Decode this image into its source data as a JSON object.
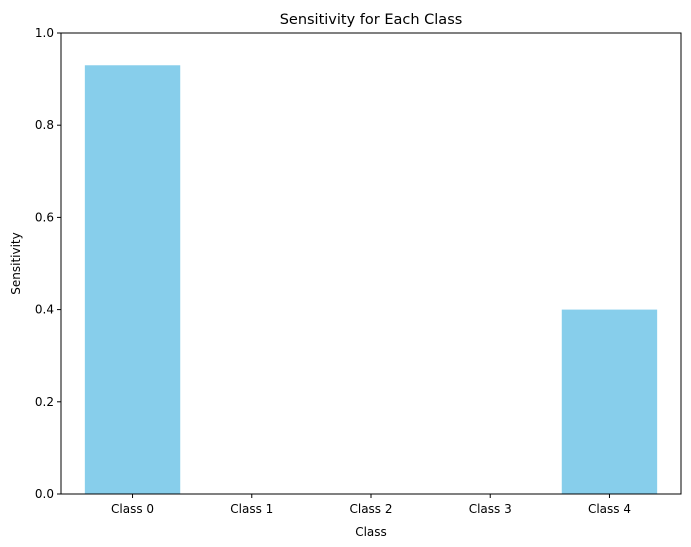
{
  "chart_data": {
    "type": "bar",
    "title": "Sensitivity for Each Class",
    "xlabel": "Class",
    "ylabel": "Sensitivity",
    "categories": [
      "Class 0",
      "Class 1",
      "Class 2",
      "Class 3",
      "Class 4"
    ],
    "values": [
      0.93,
      0.0,
      0.0,
      0.0,
      0.4
    ],
    "ylim": [
      0,
      1.0
    ],
    "yticks": [
      "0.0",
      "0.2",
      "0.4",
      "0.6",
      "0.8",
      "1.0"
    ],
    "bar_color": "#87ceeb",
    "grid": false,
    "legend": "none"
  }
}
